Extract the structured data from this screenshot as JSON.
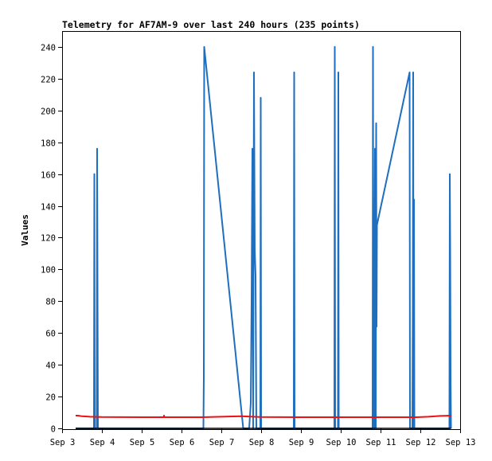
{
  "chart_data": {
    "type": "line",
    "title": "Telemetry for AF7AM-9 over last 240 hours (235 points)",
    "xlabel": "",
    "ylabel": "Values",
    "x_unit": "days since Sep 3 00:00",
    "xlim": [
      0,
      10
    ],
    "ylim": [
      0,
      255
    ],
    "x_ticks": [
      "Sep 3",
      "Sep 4",
      "Sep 5",
      "Sep 6",
      "Sep 7",
      "Sep 8",
      "Sep 9",
      "Sep 10",
      "Sep 11",
      "Sep 12",
      "Sep 13"
    ],
    "y_ticks": [
      0,
      20,
      40,
      60,
      80,
      100,
      120,
      140,
      160,
      180,
      200,
      220,
      240
    ],
    "grid": false,
    "legend": "none",
    "series": [
      {
        "color": "#1f6fbf",
        "points": [
          [
            0.34,
            0
          ],
          [
            0.8,
            0
          ],
          [
            0.81,
            160
          ],
          [
            0.82,
            0
          ],
          [
            0.87,
            0
          ],
          [
            0.88,
            176
          ],
          [
            0.89,
            88
          ],
          [
            0.9,
            0
          ],
          [
            3.55,
            0
          ],
          [
            3.56,
            32
          ],
          [
            3.57,
            240
          ],
          [
            4.55,
            0
          ],
          [
            4.7,
            0
          ],
          [
            4.74,
            16
          ],
          [
            4.76,
            80
          ],
          [
            4.78,
            176
          ],
          [
            4.8,
            0
          ],
          [
            4.82,
            224
          ],
          [
            4.84,
            112
          ],
          [
            4.86,
            96
          ],
          [
            4.88,
            0
          ],
          [
            4.98,
            0
          ],
          [
            4.99,
            208
          ],
          [
            5.0,
            0
          ],
          [
            5.82,
            0
          ],
          [
            5.83,
            224
          ],
          [
            5.84,
            0
          ],
          [
            6.84,
            0
          ],
          [
            6.85,
            240
          ],
          [
            6.86,
            0
          ],
          [
            6.93,
            0
          ],
          [
            6.94,
            224
          ],
          [
            6.95,
            0
          ],
          [
            7.8,
            0
          ],
          [
            7.81,
            240
          ],
          [
            7.82,
            40
          ],
          [
            7.84,
            0
          ],
          [
            7.86,
            176
          ],
          [
            7.87,
            128
          ],
          [
            7.88,
            0
          ],
          [
            7.89,
            192
          ],
          [
            7.9,
            64
          ],
          [
            7.91,
            128
          ],
          [
            8.73,
            224
          ],
          [
            8.74,
            0
          ],
          [
            8.8,
            0
          ],
          [
            8.81,
            72
          ],
          [
            8.82,
            224
          ],
          [
            8.83,
            0
          ],
          [
            8.84,
            144
          ],
          [
            8.85,
            0
          ],
          [
            9.73,
            0
          ],
          [
            9.74,
            160
          ],
          [
            9.75,
            112
          ],
          [
            9.76,
            32
          ],
          [
            9.77,
            0
          ]
        ]
      },
      {
        "color": "#ee1111",
        "points": [
          [
            0.34,
            8.0
          ],
          [
            0.4,
            8.0
          ],
          [
            0.5,
            7.6
          ],
          [
            0.7,
            7.3
          ],
          [
            1.0,
            7.1
          ],
          [
            2.0,
            7.0
          ],
          [
            2.55,
            7.0
          ],
          [
            2.56,
            8.0
          ],
          [
            2.57,
            7.0
          ],
          [
            3.5,
            7.0
          ],
          [
            4.0,
            7.3
          ],
          [
            4.5,
            7.6
          ],
          [
            4.8,
            7.3
          ],
          [
            5.0,
            7.1
          ],
          [
            6.0,
            7.0
          ],
          [
            7.0,
            7.0
          ],
          [
            8.0,
            7.0
          ],
          [
            8.9,
            7.0
          ],
          [
            9.2,
            7.3
          ],
          [
            9.5,
            7.8
          ],
          [
            9.77,
            8.0
          ]
        ]
      },
      {
        "color": "#000000",
        "points": [
          [
            0.34,
            0
          ],
          [
            9.77,
            0
          ]
        ]
      }
    ]
  }
}
